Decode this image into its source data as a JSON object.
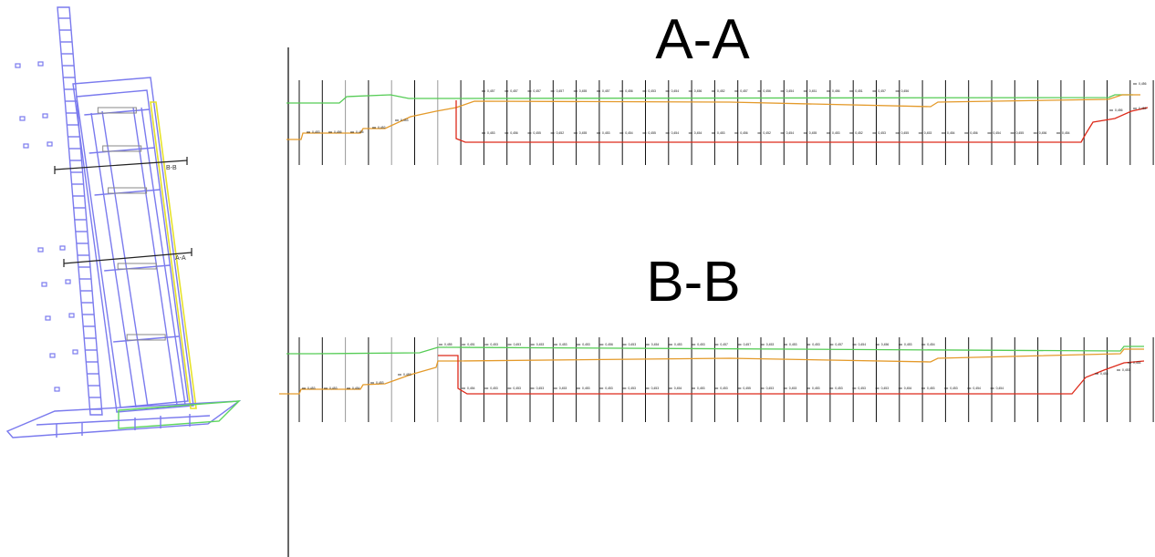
{
  "plan": {
    "cut_labels": [
      "B-B",
      "A-A"
    ],
    "colors": {
      "structure": "#7a7aee",
      "edge": "#e6e22a",
      "base": "#5ed65e",
      "detail": "#888888"
    }
  },
  "sections": [
    {
      "title": "A-A",
      "top_labels": [
        "0,457",
        "0,457",
        "0,457",
        "0,457",
        "0,455",
        "0,457",
        "0,456",
        "0,453",
        "0,454",
        "0,456",
        "0,452",
        "0,457",
        "0,456",
        "0,454",
        "0,451",
        "0,456",
        "0,451",
        "0,457",
        "0,456"
      ],
      "bottom_labels": [
        "0,453",
        "0,456",
        "0,455",
        "0,452",
        "0,455",
        "0,453",
        "0,454",
        "0,455",
        "0,454",
        "0,454",
        "0,453",
        "0,456",
        "0,452",
        "0,454",
        "0,455",
        "0,453",
        "0,452",
        "0,453",
        "0,455",
        "0,453",
        "0,454",
        "0,456",
        "0,454",
        "0,455",
        "0,456",
        "0,454"
      ],
      "left_labels": [
        "0,453",
        "0,456",
        "0,455",
        "0,452",
        "0,453"
      ],
      "right_labels": [
        "0,456",
        "0,455",
        "0,456"
      ],
      "colors": {
        "top": "#55cc55",
        "bottom": "#dd2a1a",
        "mid": "#e49a2a"
      }
    },
    {
      "title": "B-B",
      "top_labels": [
        "0,455",
        "0,451",
        "0,453",
        "0,453",
        "0,453",
        "0,453",
        "0,453",
        "0,456",
        "0,453",
        "0,454",
        "0,453",
        "0,453",
        "0,457",
        "0,457",
        "0,453",
        "0,453",
        "0,453",
        "0,457",
        "0,454",
        "0,456",
        "0,453",
        "0,454"
      ],
      "bottom_labels": [
        "0,454",
        "0,453",
        "0,453",
        "0,453",
        "0,453",
        "0,453",
        "0,453",
        "0,453",
        "0,453",
        "0,454",
        "0,453",
        "0,453",
        "0,455",
        "0,453",
        "0,453",
        "0,453",
        "0,453",
        "0,453",
        "0,453",
        "0,454",
        "0,453",
        "0,453",
        "0,454",
        "0,454"
      ],
      "left_labels": [
        "0,453",
        "0,453",
        "0,454",
        "0,453",
        "0,453"
      ],
      "right_labels": [
        "0,454",
        "0,453",
        "0,453"
      ],
      "colors": {
        "top": "#55cc55",
        "bottom": "#dd2a1a",
        "mid": "#e49a2a"
      }
    }
  ]
}
